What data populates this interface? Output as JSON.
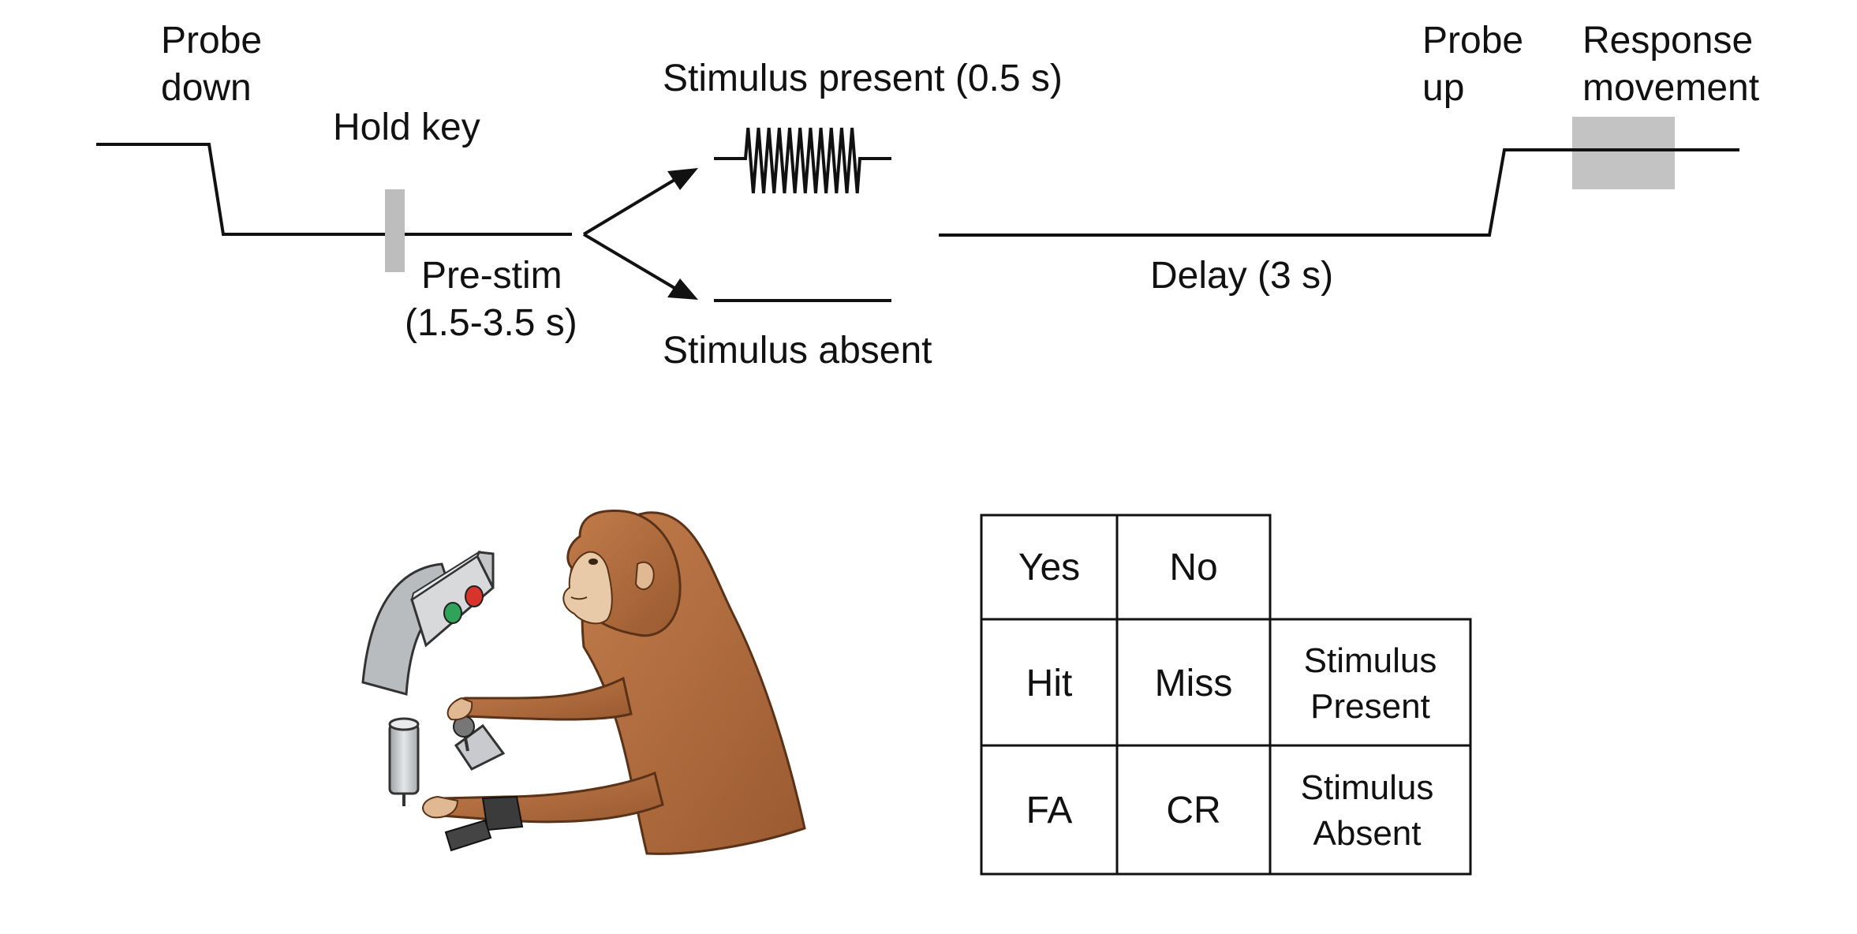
{
  "timeline": {
    "probe_down": [
      "Probe",
      "down"
    ],
    "hold_key": "Hold key",
    "pre_stim": [
      "Pre-stim",
      "(1.5-3.5 s)"
    ],
    "stimulus_present": "Stimulus present (0.5 s)",
    "stimulus_absent": "Stimulus absent",
    "delay": "Delay (3 s)",
    "probe_up": [
      "Probe",
      "up"
    ],
    "response_movement": [
      "Response",
      "movement"
    ]
  },
  "response_table": {
    "headers": [
      "Yes",
      "No"
    ],
    "rows": [
      {
        "cells": [
          "Hit",
          "Miss"
        ],
        "label": [
          "Stimulus",
          "Present"
        ]
      },
      {
        "cells": [
          "FA",
          "CR"
        ],
        "label": [
          "Stimulus",
          "Absent"
        ]
      }
    ]
  },
  "colors": {
    "line": "#111111",
    "marker_gray": "#bdbdbd",
    "monkey_fur": "#b06a3c",
    "monkey_face": "#e8c9a8",
    "apparatus": "#d4d6d8",
    "green_button": "#2fa35a",
    "red_button": "#d9342b"
  },
  "illustration": {
    "icon": "monkey-at-apparatus-icon"
  }
}
